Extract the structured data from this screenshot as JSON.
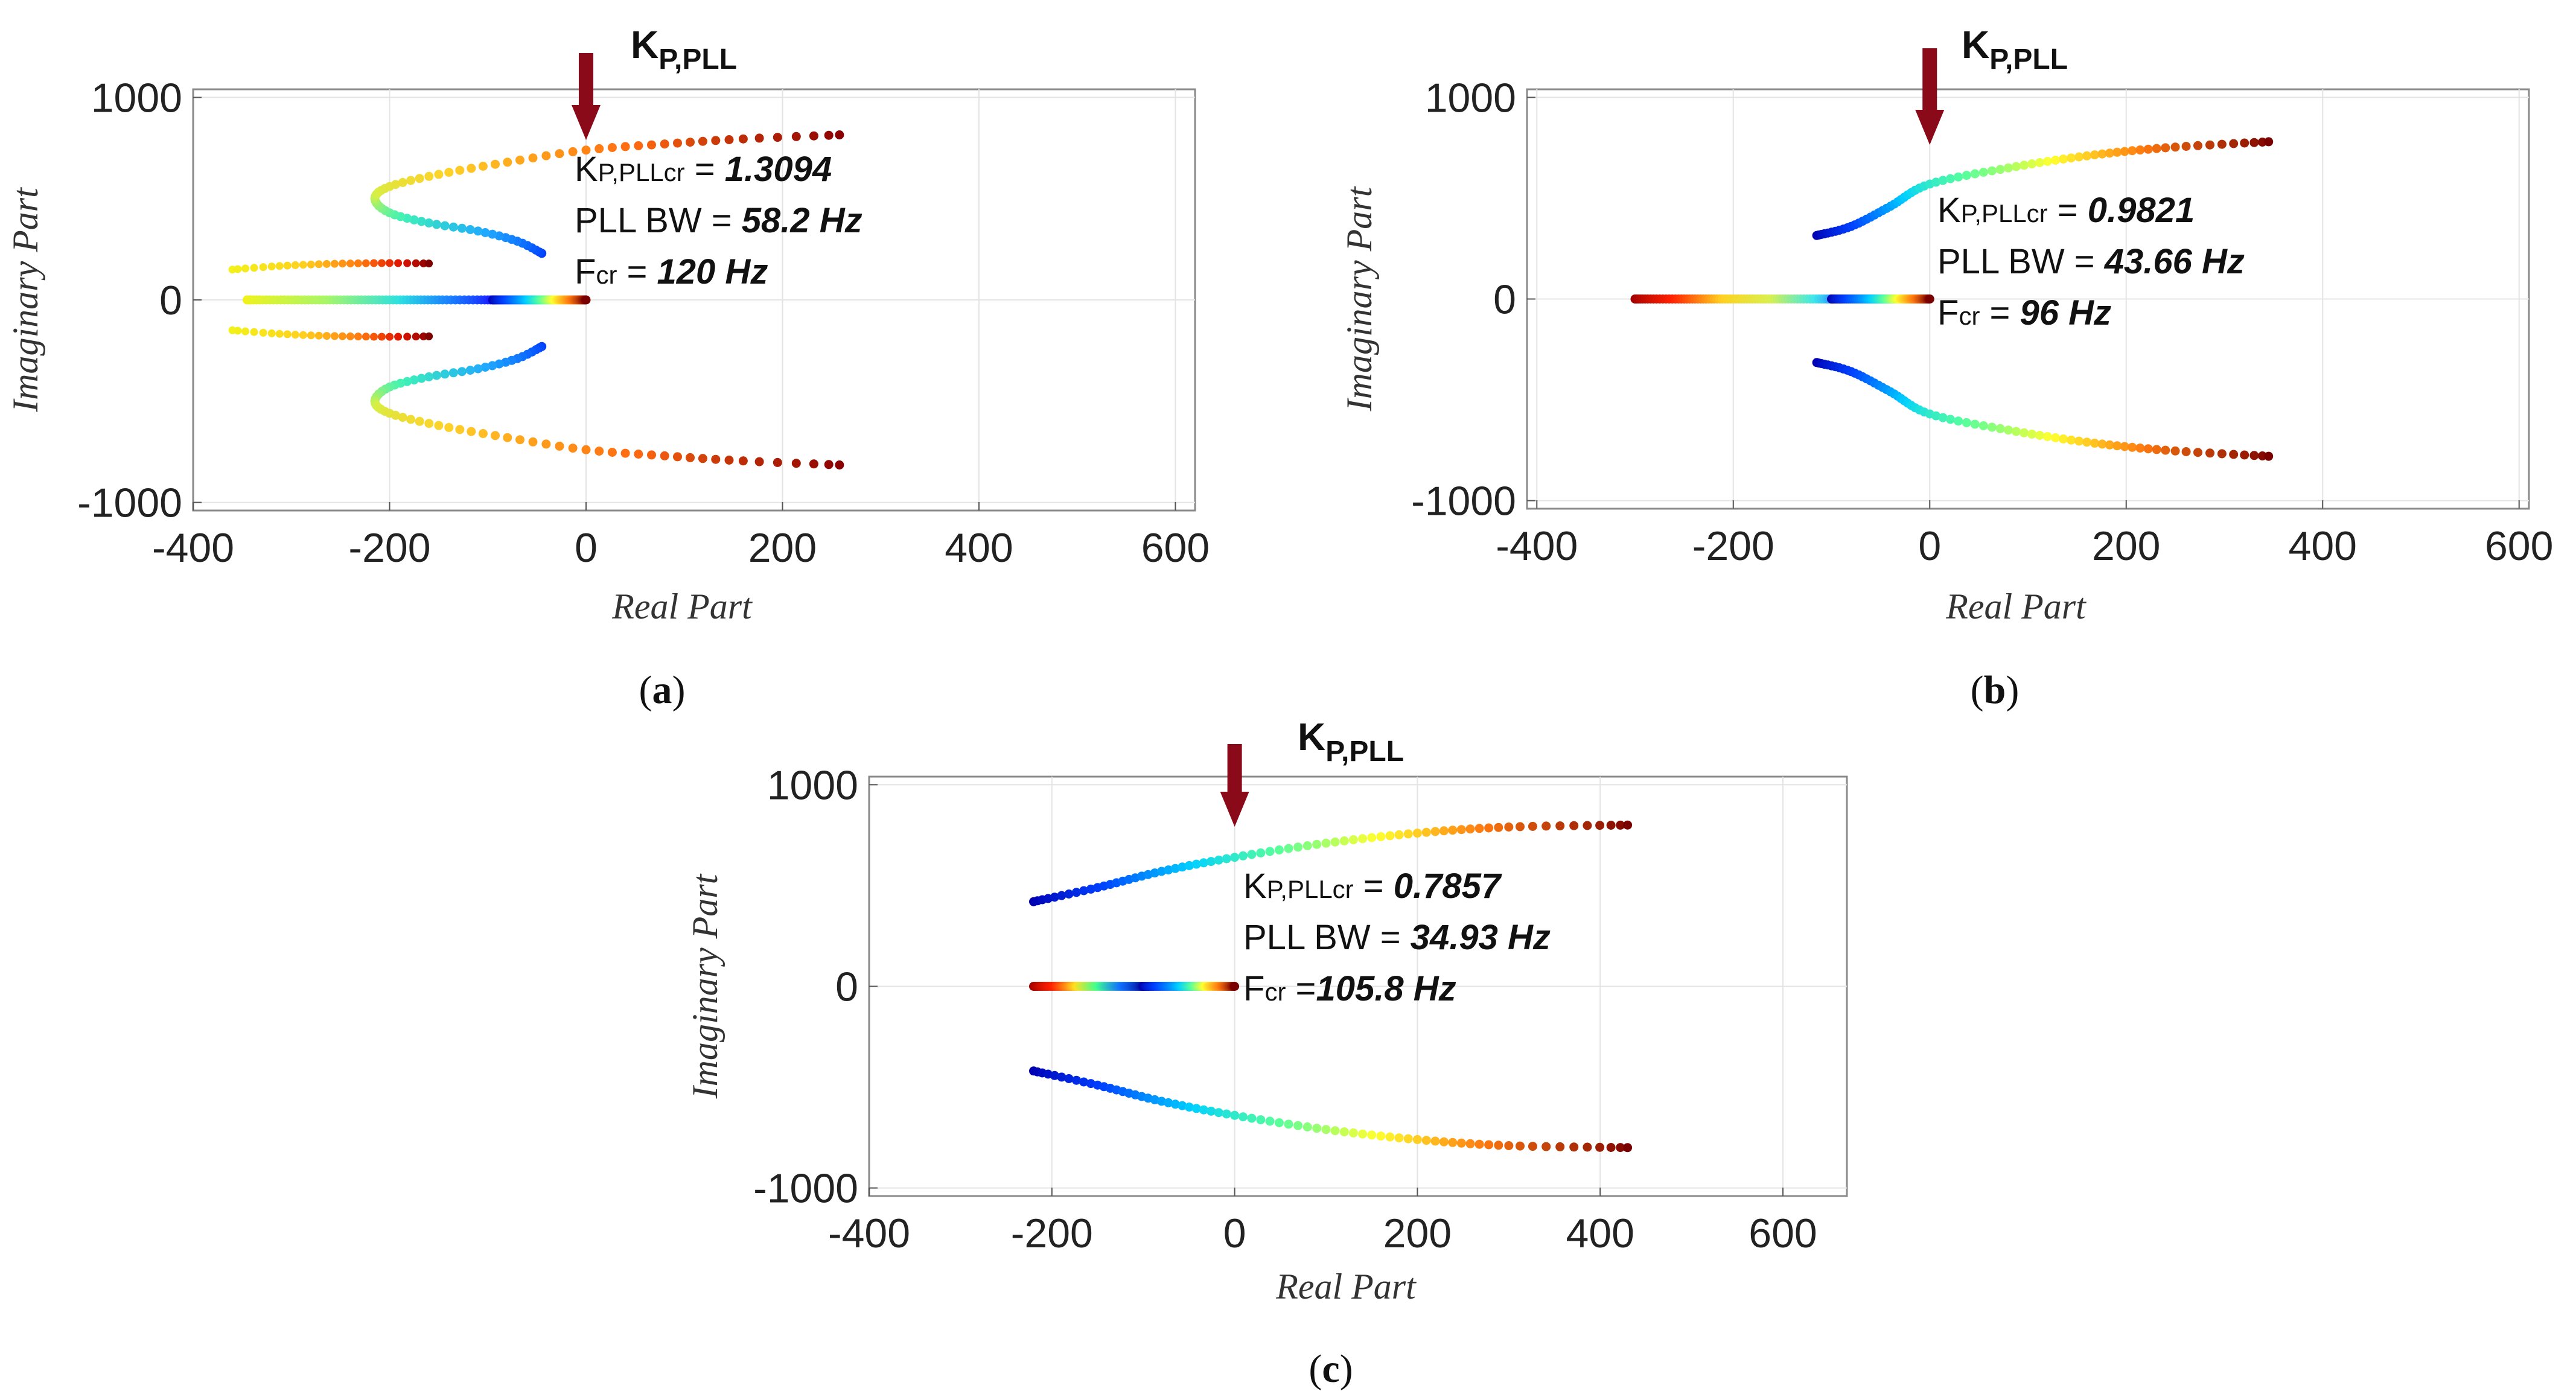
{
  "chart_data": [
    {
      "id": "a",
      "type": "scatter",
      "caption": "(a)",
      "xlabel": "Real Part",
      "ylabel": "Imaginary Part",
      "xlim": [
        -400,
        620
      ],
      "ylim": [
        -1040,
        1040
      ],
      "xticks": [
        -400,
        -200,
        0,
        200,
        400,
        600
      ],
      "yticks": [
        -1000,
        0,
        1000
      ],
      "arrow_label": {
        "main": "K",
        "sub": "P,PLL"
      },
      "arrow_x": 0,
      "annotations": [
        {
          "prefix": "K",
          "sub": "P,PLLcr",
          "eq": " = ",
          "value": "1.3094"
        },
        {
          "prefix": "PLL BW",
          "sub": "",
          "eq": " = ",
          "value": "58.2 Hz"
        },
        {
          "prefix": "F",
          "sub": "cr",
          "eq": " = ",
          "value": "120 Hz"
        }
      ],
      "series": [
        {
          "name": "upper main branch",
          "colormap": "hot_to_green",
          "points": [
            [
              -45,
              230
            ],
            [
              -70,
              290
            ],
            [
              -110,
              340
            ],
            [
              -160,
              380
            ],
            [
              -200,
              430
            ],
            [
              -215,
              500
            ],
            [
              -200,
              560
            ],
            [
              -150,
              620
            ],
            [
              -80,
              680
            ],
            [
              0,
              740
            ],
            [
              80,
              770
            ],
            [
              160,
              795
            ],
            [
              258,
              815
            ]
          ]
        },
        {
          "name": "lower main branch",
          "colormap": "hot_to_green",
          "points": [
            [
              -45,
              -230
            ],
            [
              -70,
              -290
            ],
            [
              -110,
              -340
            ],
            [
              -160,
              -380
            ],
            [
              -200,
              -430
            ],
            [
              -215,
              -500
            ],
            [
              -200,
              -560
            ],
            [
              -150,
              -620
            ],
            [
              -80,
              -680
            ],
            [
              0,
              -740
            ],
            [
              80,
              -770
            ],
            [
              160,
              -795
            ],
            [
              258,
              -815
            ]
          ]
        },
        {
          "name": "upper short branch",
          "colormap": "yellow_to_red",
          "points": [
            [
              -360,
              150
            ],
            [
              -320,
              165
            ],
            [
              -280,
              175
            ],
            [
              -240,
              180
            ],
            [
              -200,
              182
            ],
            [
              -160,
              180
            ]
          ]
        },
        {
          "name": "lower short branch",
          "colormap": "yellow_to_red",
          "points": [
            [
              -360,
              -150
            ],
            [
              -320,
              -165
            ],
            [
              -280,
              -175
            ],
            [
              -240,
              -180
            ],
            [
              -200,
              -182
            ],
            [
              -160,
              -180
            ]
          ]
        },
        {
          "name": "real axis left",
          "colormap": "yellow_to_blue",
          "points": [
            [
              -345,
              0
            ],
            [
              -300,
              0
            ],
            [
              -250,
              0
            ],
            [
              -200,
              0
            ],
            [
              -150,
              0
            ],
            [
              -95,
              0
            ]
          ]
        },
        {
          "name": "real axis right",
          "colormap": "blue_to_red",
          "points": [
            [
              -95,
              0
            ],
            [
              -60,
              0
            ],
            [
              -30,
              0
            ],
            [
              0,
              0
            ]
          ]
        }
      ]
    },
    {
      "id": "b",
      "type": "scatter",
      "caption": "(b)",
      "xlabel": "Real Part",
      "ylabel": "Imaginary Part",
      "xlim": [
        -410,
        610
      ],
      "ylim": [
        -1040,
        1040
      ],
      "xticks": [
        -400,
        -200,
        0,
        200,
        400,
        600
      ],
      "yticks": [
        -1000,
        0,
        1000
      ],
      "arrow_label": {
        "main": "K",
        "sub": "P,PLL"
      },
      "arrow_x": 0,
      "annotations": [
        {
          "prefix": "K",
          "sub": "P,PLLcr",
          "eq": " = ",
          "value": "0.9821"
        },
        {
          "prefix": "PLL BW",
          "sub": "",
          "eq": " = ",
          "value": "43.66 Hz"
        },
        {
          "prefix": "F",
          "sub": "cr",
          "eq": " = ",
          "value": "96 Hz"
        }
      ],
      "series": [
        {
          "name": "upper branch",
          "colormap": "blue_to_red",
          "points": [
            [
              -115,
              315
            ],
            [
              -80,
              360
            ],
            [
              -40,
              460
            ],
            [
              0,
              570
            ],
            [
              80,
              650
            ],
            [
              160,
              710
            ],
            [
              240,
              750
            ],
            [
              345,
              780
            ]
          ]
        },
        {
          "name": "lower branch",
          "colormap": "blue_to_red",
          "points": [
            [
              -115,
              -315
            ],
            [
              -80,
              -360
            ],
            [
              -40,
              -460
            ],
            [
              0,
              -570
            ],
            [
              80,
              -650
            ],
            [
              160,
              -710
            ],
            [
              240,
              -750
            ],
            [
              345,
              -780
            ]
          ]
        },
        {
          "name": "real axis left",
          "colormap": "red_to_cyan",
          "points": [
            [
              -300,
              0
            ],
            [
              -250,
              0
            ],
            [
              -200,
              0
            ],
            [
              -150,
              0
            ],
            [
              -100,
              0
            ]
          ]
        },
        {
          "name": "real axis right",
          "colormap": "blue_to_red",
          "points": [
            [
              -100,
              0
            ],
            [
              -60,
              0
            ],
            [
              -30,
              0
            ],
            [
              0,
              0
            ]
          ]
        }
      ]
    },
    {
      "id": "c",
      "type": "scatter",
      "caption": "(c)",
      "xlabel": "Real Part",
      "ylabel": "Imaginary Part",
      "xlim": [
        -400,
        670
      ],
      "ylim": [
        -1040,
        1040
      ],
      "xticks": [
        -400,
        -200,
        0,
        200,
        400,
        600
      ],
      "yticks": [
        -1000,
        0,
        1000
      ],
      "arrow_label": {
        "main": "K",
        "sub": "P,PLL"
      },
      "arrow_x": 0,
      "annotations": [
        {
          "prefix": "K",
          "sub": "P,PLLcr",
          "eq": " = ",
          "value": "0.7857"
        },
        {
          "prefix": "PLL BW",
          "sub": "",
          "eq": " = ",
          "value": "34.93 Hz"
        },
        {
          "prefix": "F",
          "sub": "cr",
          "eq": " =",
          "value": "105.8 Hz"
        }
      ],
      "series": [
        {
          "name": "upper branch",
          "colormap": "blue_to_red",
          "points": [
            [
              -220,
              420
            ],
            [
              -150,
              490
            ],
            [
              -80,
              570
            ],
            [
              0,
              640
            ],
            [
              100,
              710
            ],
            [
              200,
              760
            ],
            [
              300,
              790
            ],
            [
              430,
              800
            ]
          ]
        },
        {
          "name": "lower branch",
          "colormap": "blue_to_red",
          "points": [
            [
              -220,
              -420
            ],
            [
              -150,
              -490
            ],
            [
              -80,
              -570
            ],
            [
              0,
              -640
            ],
            [
              100,
              -710
            ],
            [
              200,
              -760
            ],
            [
              300,
              -790
            ],
            [
              430,
              -800
            ]
          ]
        },
        {
          "name": "real axis left",
          "colormap": "red_to_blue",
          "points": [
            [
              -220,
              0
            ],
            [
              -180,
              0
            ],
            [
              -140,
              0
            ],
            [
              -100,
              0
            ]
          ]
        },
        {
          "name": "real axis right",
          "colormap": "blue_to_red",
          "points": [
            [
              -100,
              0
            ],
            [
              -60,
              0
            ],
            [
              -30,
              0
            ],
            [
              0,
              0
            ]
          ]
        }
      ]
    }
  ]
}
